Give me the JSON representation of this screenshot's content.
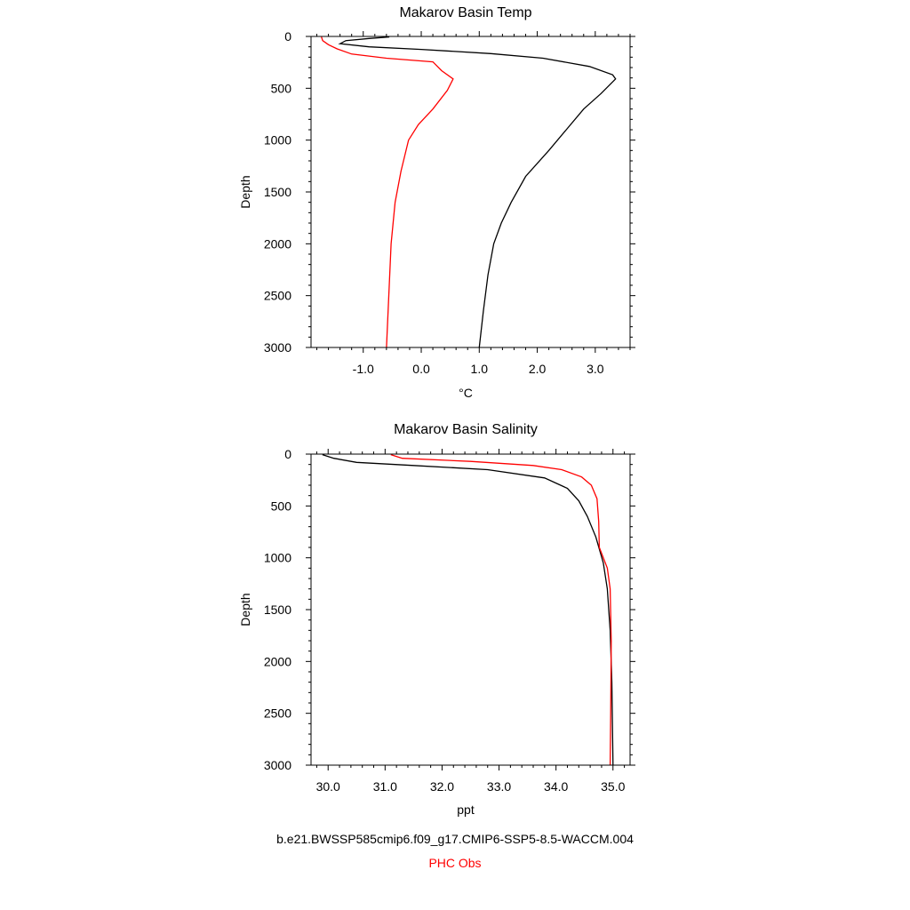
{
  "footer": {
    "model_label": "b.e21.BWSSP585cmip6.f09_g17.CMIP6-SSP5-8.5-WACCM.004",
    "obs_label": "PHC Obs"
  },
  "colors": {
    "model": "#000000",
    "obs": "#ff0000"
  },
  "chart_data": [
    {
      "type": "line",
      "title": "Makarov Basin Temp",
      "xlabel": "°C",
      "ylabel": "Depth",
      "xlim": [
        -1.9,
        3.6
      ],
      "ylim": [
        0,
        3000
      ],
      "y_inverted": true,
      "x_ticks": [
        -1.0,
        0.0,
        1.0,
        2.0,
        3.0
      ],
      "x_tick_labels": [
        "-1.0",
        "0.0",
        "1.0",
        "2.0",
        "3.0"
      ],
      "y_ticks": [
        0,
        500,
        1000,
        1500,
        2000,
        2500,
        3000
      ],
      "y_tick_labels": [
        "0",
        "500",
        "1000",
        "1500",
        "2000",
        "2500",
        "3000"
      ],
      "grid": false,
      "series": [
        {
          "color": "#000000",
          "points": [
            [
              -0.55,
              5
            ],
            [
              -0.9,
              20
            ],
            [
              -1.3,
              40
            ],
            [
              -1.4,
              70
            ],
            [
              -0.9,
              100
            ],
            [
              0.0,
              125
            ],
            [
              1.2,
              165
            ],
            [
              2.1,
              210
            ],
            [
              2.9,
              290
            ],
            [
              3.3,
              370
            ],
            [
              3.35,
              410
            ],
            [
              3.1,
              550
            ],
            [
              2.8,
              700
            ],
            [
              2.5,
              900
            ],
            [
              2.2,
              1100
            ],
            [
              1.8,
              1350
            ],
            [
              1.55,
              1600
            ],
            [
              1.38,
              1800
            ],
            [
              1.25,
              2000
            ],
            [
              1.15,
              2300
            ],
            [
              1.07,
              2650
            ],
            [
              1.0,
              3000
            ]
          ]
        },
        {
          "color": "#ff0000",
          "points": [
            [
              -1.72,
              5
            ],
            [
              -1.7,
              40
            ],
            [
              -1.6,
              80
            ],
            [
              -1.45,
              120
            ],
            [
              -1.2,
              170
            ],
            [
              -0.6,
              210
            ],
            [
              0.2,
              245
            ],
            [
              0.35,
              330
            ],
            [
              0.55,
              410
            ],
            [
              0.45,
              520
            ],
            [
              0.2,
              700
            ],
            [
              -0.05,
              850
            ],
            [
              -0.22,
              1000
            ],
            [
              -0.35,
              1300
            ],
            [
              -0.45,
              1600
            ],
            [
              -0.52,
              2000
            ],
            [
              -0.56,
              2500
            ],
            [
              -0.6,
              3000
            ]
          ]
        }
      ]
    },
    {
      "type": "line",
      "title": "Makarov Basin Salinity",
      "xlabel": "ppt",
      "ylabel": "Depth",
      "xlim": [
        29.7,
        35.3
      ],
      "ylim": [
        0,
        3000
      ],
      "y_inverted": true,
      "x_ticks": [
        30.0,
        31.0,
        32.0,
        33.0,
        34.0,
        35.0
      ],
      "x_tick_labels": [
        "30.0",
        "31.0",
        "32.0",
        "33.0",
        "34.0",
        "35.0"
      ],
      "y_ticks": [
        0,
        500,
        1000,
        1500,
        2000,
        2500,
        3000
      ],
      "y_tick_labels": [
        "0",
        "500",
        "1000",
        "1500",
        "2000",
        "2500",
        "3000"
      ],
      "grid": false,
      "series": [
        {
          "color": "#000000",
          "points": [
            [
              29.9,
              5
            ],
            [
              30.1,
              40
            ],
            [
              30.5,
              80
            ],
            [
              31.5,
              110
            ],
            [
              32.8,
              150
            ],
            [
              33.8,
              230
            ],
            [
              34.2,
              330
            ],
            [
              34.4,
              450
            ],
            [
              34.55,
              600
            ],
            [
              34.7,
              800
            ],
            [
              34.83,
              1050
            ],
            [
              34.9,
              1300
            ],
            [
              34.95,
              1700
            ],
            [
              34.98,
              2200
            ],
            [
              35.0,
              3000
            ]
          ]
        },
        {
          "color": "#ff0000",
          "points": [
            [
              31.1,
              5
            ],
            [
              31.3,
              40
            ],
            [
              32.5,
              70
            ],
            [
              33.6,
              110
            ],
            [
              34.1,
              150
            ],
            [
              34.45,
              220
            ],
            [
              34.62,
              300
            ],
            [
              34.72,
              430
            ],
            [
              34.75,
              650
            ],
            [
              34.76,
              900
            ],
            [
              34.9,
              1100
            ],
            [
              34.95,
              1300
            ],
            [
              34.97,
              1800
            ],
            [
              34.96,
              2500
            ],
            [
              34.95,
              3000
            ]
          ]
        }
      ]
    }
  ]
}
